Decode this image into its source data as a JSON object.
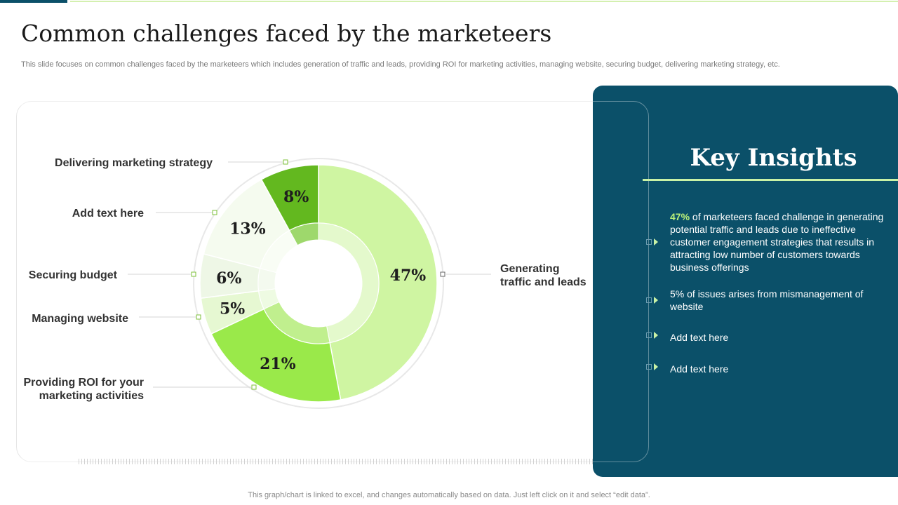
{
  "slide": {
    "title": "Common challenges faced by the marketeers",
    "subtitle": "This slide focuses on common challenges faced by the marketeers which includes generation of traffic and leads, providing ROI for marketing activities, managing website, securing budget, delivering marketing strategy, etc.",
    "footer": "This graph/chart is linked to excel,  and changes automatically based on data. Just left click on it and select “edit data”."
  },
  "insights": {
    "title": "Key Insights",
    "bullets": [
      {
        "highlight": "47%",
        "text": " of marketeers faced challenge in generating potential traffic and leads due to ineffective customer engagement strategies that results in  attracting low number of customers towards business offerings"
      },
      {
        "highlight": "",
        "text": "5% of issues arises from mismanagement of website"
      },
      {
        "highlight": "",
        "text": "Add text here"
      },
      {
        "highlight": "",
        "text": "Add text here"
      }
    ]
  },
  "colors": {
    "panel": "#0b5069",
    "accent": "#c9f2a6",
    "highlight": "#b9f07a"
  },
  "chart_data": {
    "type": "pie",
    "variant": "donut",
    "legend": "none",
    "grid": false,
    "categories": [
      "Generating traffic and leads",
      "Providing ROI for your marketing activities",
      "Managing website",
      "Securing budget",
      "Add text here",
      "Delivering marketing strategy"
    ],
    "values": [
      47,
      21,
      5,
      6,
      13,
      8
    ],
    "value_labels": [
      "47%",
      "21%",
      "5%",
      "6%",
      "13%",
      "8%"
    ],
    "label_lines": [
      [
        "Generating",
        "traffic and leads"
      ],
      [
        "Providing ROI for your",
        "marketing activities"
      ],
      [
        "Managing website"
      ],
      [
        "Securing budget"
      ],
      [
        "Add text here"
      ],
      [
        "Delivering marketing strategy"
      ]
    ],
    "colors": [
      "#cff5a2",
      "#9ae94a",
      "#e6f8d2",
      "#eef7e6",
      "#f5fbef",
      "#63b81f"
    ],
    "inner_colors": [
      "#e4f9cc",
      "#c0ef8e",
      "#eefbe2",
      "#f4faef",
      "#f9fdf5",
      "#9ed86c"
    ]
  }
}
